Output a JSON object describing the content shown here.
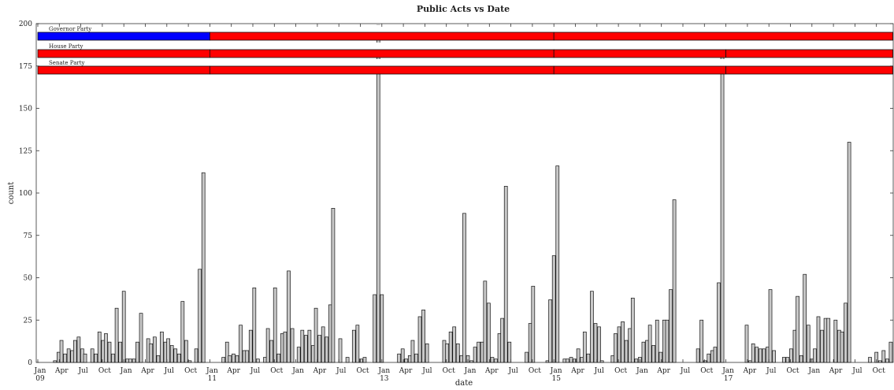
{
  "chart_data": {
    "type": "bar",
    "title": "Public Acts vs Date",
    "xlabel": "date",
    "ylabel": "count",
    "ylim": [
      0,
      200
    ],
    "yticks": [
      0,
      25,
      50,
      75,
      100,
      125,
      150,
      175,
      200
    ],
    "bar_color": "#c8c8c8",
    "x_ticks": [
      {
        "month": 0,
        "label": "Jan",
        "sub": "09"
      },
      {
        "month": 3,
        "label": "Apr"
      },
      {
        "month": 6,
        "label": "Jul"
      },
      {
        "month": 9,
        "label": "Oct"
      },
      {
        "month": 12,
        "label": "Jan"
      },
      {
        "month": 15,
        "label": "Apr"
      },
      {
        "month": 18,
        "label": "Jul"
      },
      {
        "month": 21,
        "label": "Oct"
      },
      {
        "month": 24,
        "label": "Jan",
        "sub": "11"
      },
      {
        "month": 27,
        "label": "Apr"
      },
      {
        "month": 30,
        "label": "Jul"
      },
      {
        "month": 33,
        "label": "Oct"
      },
      {
        "month": 36,
        "label": "Jan"
      },
      {
        "month": 39,
        "label": "Apr"
      },
      {
        "month": 42,
        "label": "Jul"
      },
      {
        "month": 45,
        "label": "Oct"
      },
      {
        "month": 48,
        "label": "Jan",
        "sub": "13"
      },
      {
        "month": 51,
        "label": "Apr"
      },
      {
        "month": 54,
        "label": "Jul"
      },
      {
        "month": 57,
        "label": "Oct"
      },
      {
        "month": 60,
        "label": "Jan"
      },
      {
        "month": 63,
        "label": "Apr"
      },
      {
        "month": 66,
        "label": "Jul"
      },
      {
        "month": 69,
        "label": "Oct"
      },
      {
        "month": 72,
        "label": "Jan",
        "sub": "15"
      },
      {
        "month": 75,
        "label": "Apr"
      },
      {
        "month": 78,
        "label": "Jul"
      },
      {
        "month": 81,
        "label": "Oct"
      },
      {
        "month": 84,
        "label": "Jan"
      },
      {
        "month": 87,
        "label": "Apr"
      },
      {
        "month": 90,
        "label": "Jul"
      },
      {
        "month": 93,
        "label": "Oct"
      },
      {
        "month": 96,
        "label": "Jan",
        "sub": "17"
      },
      {
        "month": 99,
        "label": "Apr"
      },
      {
        "month": 102,
        "label": "Jul"
      },
      {
        "month": 105,
        "label": "Oct"
      },
      {
        "month": 108,
        "label": "Jan"
      },
      {
        "month": 111,
        "label": "Apr"
      },
      {
        "month": 114,
        "label": "Jul"
      },
      {
        "month": 117,
        "label": "Oct"
      }
    ],
    "x_range_months": [
      0,
      119.5
    ],
    "bars": [
      {
        "x": 2.4,
        "y": 1
      },
      {
        "x": 2.9,
        "y": 6
      },
      {
        "x": 3.3,
        "y": 13
      },
      {
        "x": 3.8,
        "y": 5
      },
      {
        "x": 4.3,
        "y": 8
      },
      {
        "x": 4.8,
        "y": 7
      },
      {
        "x": 5.2,
        "y": 13
      },
      {
        "x": 5.7,
        "y": 15
      },
      {
        "x": 6.2,
        "y": 8
      },
      {
        "x": 6.6,
        "y": 5
      },
      {
        "x": 7.6,
        "y": 8
      },
      {
        "x": 8.1,
        "y": 5
      },
      {
        "x": 8.6,
        "y": 18
      },
      {
        "x": 9.1,
        "y": 13
      },
      {
        "x": 9.5,
        "y": 17
      },
      {
        "x": 10.0,
        "y": 12
      },
      {
        "x": 10.5,
        "y": 5
      },
      {
        "x": 11.0,
        "y": 32
      },
      {
        "x": 11.5,
        "y": 12
      },
      {
        "x": 12.0,
        "y": 42
      },
      {
        "x": 12.5,
        "y": 2
      },
      {
        "x": 12.9,
        "y": 2
      },
      {
        "x": 13.4,
        "y": 2
      },
      {
        "x": 13.9,
        "y": 12
      },
      {
        "x": 14.4,
        "y": 29
      },
      {
        "x": 15.4,
        "y": 14
      },
      {
        "x": 15.8,
        "y": 11
      },
      {
        "x": 16.3,
        "y": 15
      },
      {
        "x": 16.8,
        "y": 4
      },
      {
        "x": 17.3,
        "y": 18
      },
      {
        "x": 17.8,
        "y": 12
      },
      {
        "x": 18.2,
        "y": 14
      },
      {
        "x": 18.7,
        "y": 10
      },
      {
        "x": 19.2,
        "y": 8
      },
      {
        "x": 19.7,
        "y": 5
      },
      {
        "x": 20.2,
        "y": 36
      },
      {
        "x": 20.7,
        "y": 13
      },
      {
        "x": 21.2,
        "y": 1
      },
      {
        "x": 22.1,
        "y": 8
      },
      {
        "x": 22.6,
        "y": 55
      },
      {
        "x": 23.1,
        "y": 112
      },
      {
        "x": 25.9,
        "y": 3
      },
      {
        "x": 26.4,
        "y": 12
      },
      {
        "x": 26.8,
        "y": 4
      },
      {
        "x": 27.3,
        "y": 5
      },
      {
        "x": 27.8,
        "y": 4
      },
      {
        "x": 28.3,
        "y": 22
      },
      {
        "x": 28.8,
        "y": 7
      },
      {
        "x": 29.2,
        "y": 7
      },
      {
        "x": 29.7,
        "y": 19
      },
      {
        "x": 30.2,
        "y": 44
      },
      {
        "x": 30.7,
        "y": 2
      },
      {
        "x": 31.7,
        "y": 3
      },
      {
        "x": 32.1,
        "y": 20
      },
      {
        "x": 32.6,
        "y": 13
      },
      {
        "x": 33.1,
        "y": 44
      },
      {
        "x": 33.6,
        "y": 5
      },
      {
        "x": 34.1,
        "y": 17
      },
      {
        "x": 34.5,
        "y": 18
      },
      {
        "x": 35.0,
        "y": 54
      },
      {
        "x": 35.5,
        "y": 20
      },
      {
        "x": 36.4,
        "y": 9
      },
      {
        "x": 36.9,
        "y": 19
      },
      {
        "x": 37.4,
        "y": 16
      },
      {
        "x": 37.9,
        "y": 19
      },
      {
        "x": 38.4,
        "y": 10
      },
      {
        "x": 38.8,
        "y": 32
      },
      {
        "x": 39.3,
        "y": 16
      },
      {
        "x": 39.8,
        "y": 21
      },
      {
        "x": 40.3,
        "y": 15
      },
      {
        "x": 40.8,
        "y": 34
      },
      {
        "x": 41.2,
        "y": 91
      },
      {
        "x": 42.2,
        "y": 14
      },
      {
        "x": 43.2,
        "y": 3
      },
      {
        "x": 44.1,
        "y": 19
      },
      {
        "x": 44.6,
        "y": 22
      },
      {
        "x": 45.1,
        "y": 2
      },
      {
        "x": 45.6,
        "y": 3
      },
      {
        "x": 47.0,
        "y": 40
      },
      {
        "x": 47.5,
        "y": 199
      },
      {
        "x": 48.0,
        "y": 40
      },
      {
        "x": 50.4,
        "y": 5
      },
      {
        "x": 50.9,
        "y": 8
      },
      {
        "x": 51.4,
        "y": 2
      },
      {
        "x": 51.9,
        "y": 4
      },
      {
        "x": 52.3,
        "y": 13
      },
      {
        "x": 52.8,
        "y": 5
      },
      {
        "x": 53.3,
        "y": 27
      },
      {
        "x": 53.8,
        "y": 31
      },
      {
        "x": 54.3,
        "y": 11
      },
      {
        "x": 56.7,
        "y": 13
      },
      {
        "x": 57.1,
        "y": 11
      },
      {
        "x": 57.6,
        "y": 18
      },
      {
        "x": 58.1,
        "y": 21
      },
      {
        "x": 58.6,
        "y": 11
      },
      {
        "x": 59.1,
        "y": 4
      },
      {
        "x": 59.5,
        "y": 88
      },
      {
        "x": 60.0,
        "y": 4
      },
      {
        "x": 60.5,
        "y": 1
      },
      {
        "x": 61.0,
        "y": 9
      },
      {
        "x": 61.5,
        "y": 12
      },
      {
        "x": 62.0,
        "y": 12
      },
      {
        "x": 62.4,
        "y": 48
      },
      {
        "x": 62.9,
        "y": 35
      },
      {
        "x": 63.4,
        "y": 3
      },
      {
        "x": 63.9,
        "y": 2
      },
      {
        "x": 64.4,
        "y": 17
      },
      {
        "x": 64.8,
        "y": 26
      },
      {
        "x": 65.3,
        "y": 104
      },
      {
        "x": 65.8,
        "y": 12
      },
      {
        "x": 68.2,
        "y": 6
      },
      {
        "x": 68.7,
        "y": 23
      },
      {
        "x": 69.1,
        "y": 45
      },
      {
        "x": 71.1,
        "y": 1
      },
      {
        "x": 71.5,
        "y": 37
      },
      {
        "x": 72.0,
        "y": 63
      },
      {
        "x": 72.5,
        "y": 116
      },
      {
        "x": 73.5,
        "y": 2
      },
      {
        "x": 73.9,
        "y": 2
      },
      {
        "x": 74.4,
        "y": 3
      },
      {
        "x": 74.9,
        "y": 2
      },
      {
        "x": 75.4,
        "y": 8
      },
      {
        "x": 75.9,
        "y": 3
      },
      {
        "x": 76.3,
        "y": 18
      },
      {
        "x": 76.8,
        "y": 5
      },
      {
        "x": 77.3,
        "y": 42
      },
      {
        "x": 77.8,
        "y": 23
      },
      {
        "x": 78.3,
        "y": 21
      },
      {
        "x": 78.7,
        "y": 1
      },
      {
        "x": 80.2,
        "y": 4
      },
      {
        "x": 80.6,
        "y": 17
      },
      {
        "x": 81.1,
        "y": 21
      },
      {
        "x": 81.6,
        "y": 24
      },
      {
        "x": 82.1,
        "y": 13
      },
      {
        "x": 82.6,
        "y": 20
      },
      {
        "x": 83.0,
        "y": 38
      },
      {
        "x": 83.5,
        "y": 2
      },
      {
        "x": 84.0,
        "y": 3
      },
      {
        "x": 84.5,
        "y": 12
      },
      {
        "x": 85.0,
        "y": 13
      },
      {
        "x": 85.4,
        "y": 22
      },
      {
        "x": 85.9,
        "y": 10
      },
      {
        "x": 86.4,
        "y": 25
      },
      {
        "x": 86.9,
        "y": 6
      },
      {
        "x": 87.4,
        "y": 25
      },
      {
        "x": 87.8,
        "y": 25
      },
      {
        "x": 88.3,
        "y": 43
      },
      {
        "x": 88.8,
        "y": 96
      },
      {
        "x": 92.1,
        "y": 8
      },
      {
        "x": 92.6,
        "y": 25
      },
      {
        "x": 93.1,
        "y": 1
      },
      {
        "x": 93.6,
        "y": 5
      },
      {
        "x": 94.1,
        "y": 7
      },
      {
        "x": 94.5,
        "y": 9
      },
      {
        "x": 95.0,
        "y": 47
      },
      {
        "x": 95.5,
        "y": 182
      },
      {
        "x": 98.9,
        "y": 22
      },
      {
        "x": 99.4,
        "y": 1
      },
      {
        "x": 99.8,
        "y": 11
      },
      {
        "x": 100.3,
        "y": 9
      },
      {
        "x": 100.8,
        "y": 8
      },
      {
        "x": 101.3,
        "y": 8
      },
      {
        "x": 101.8,
        "y": 9
      },
      {
        "x": 102.2,
        "y": 43
      },
      {
        "x": 102.7,
        "y": 7
      },
      {
        "x": 104.1,
        "y": 3
      },
      {
        "x": 104.6,
        "y": 3
      },
      {
        "x": 105.1,
        "y": 8
      },
      {
        "x": 105.6,
        "y": 19
      },
      {
        "x": 106.0,
        "y": 39
      },
      {
        "x": 106.5,
        "y": 4
      },
      {
        "x": 107.0,
        "y": 52
      },
      {
        "x": 107.5,
        "y": 22
      },
      {
        "x": 108.0,
        "y": 2
      },
      {
        "x": 108.4,
        "y": 8
      },
      {
        "x": 108.9,
        "y": 27
      },
      {
        "x": 109.4,
        "y": 19
      },
      {
        "x": 109.9,
        "y": 26
      },
      {
        "x": 110.3,
        "y": 26
      },
      {
        "x": 111.3,
        "y": 25
      },
      {
        "x": 111.8,
        "y": 19
      },
      {
        "x": 112.2,
        "y": 18
      },
      {
        "x": 112.7,
        "y": 35
      },
      {
        "x": 113.2,
        "y": 130
      },
      {
        "x": 116.1,
        "y": 3
      },
      {
        "x": 117.0,
        "y": 6
      },
      {
        "x": 117.5,
        "y": 1
      },
      {
        "x": 118.0,
        "y": 7
      },
      {
        "x": 118.5,
        "y": 2
      },
      {
        "x": 119.0,
        "y": 12
      }
    ],
    "party_bands": [
      {
        "label": "Governor Party",
        "segments": [
          {
            "start": 0,
            "end": 24,
            "color": "#0000ff"
          },
          {
            "start": 24,
            "end": 72,
            "color": "#ff0000"
          },
          {
            "start": 72,
            "end": 119.5,
            "color": "#ff0000"
          }
        ]
      },
      {
        "label": "House Party",
        "segments": [
          {
            "start": 0,
            "end": 24,
            "color": "#ff0000"
          },
          {
            "start": 24,
            "end": 72,
            "color": "#ff0000"
          },
          {
            "start": 72,
            "end": 96,
            "color": "#ff0000"
          },
          {
            "start": 96,
            "end": 119.5,
            "color": "#ff0000"
          }
        ]
      },
      {
        "label": "Senate Party",
        "segments": [
          {
            "start": 0,
            "end": 24,
            "color": "#ff0000"
          },
          {
            "start": 24,
            "end": 72,
            "color": "#ff0000"
          },
          {
            "start": 72,
            "end": 96,
            "color": "#ff0000"
          },
          {
            "start": 96,
            "end": 119.5,
            "color": "#ff0000"
          }
        ]
      }
    ]
  }
}
